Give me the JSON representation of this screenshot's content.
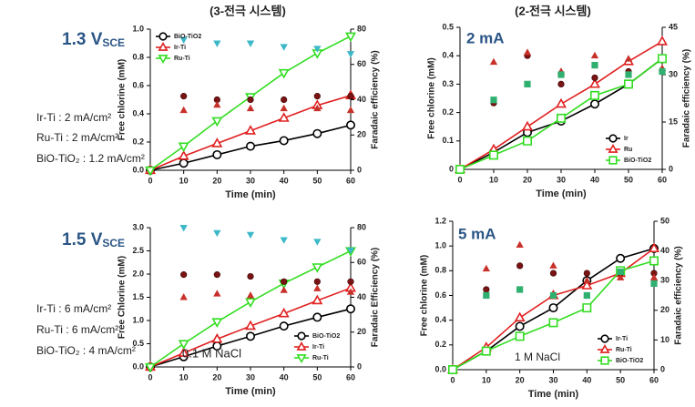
{
  "headings": [
    "(3-전극 시스템)",
    "(2-전극 시스템)"
  ],
  "conditions": [
    {
      "potential": "1.3 V",
      "subscript": "SCE",
      "lines": [
        "Ir-Ti : 2 mA/cm²",
        "Ru-Ti : 2 mA/cm²",
        "BiO-TiO₂ : 1.2 mA/cm²"
      ]
    },
    {
      "potential": "1.5 V",
      "subscript": "SCE",
      "lines": [
        "Ir-Ti : 6 mA/cm²",
        "Ru-Ti : 6 mA/cm²",
        "BiO-TiO₂ : 4 mA/cm²"
      ]
    }
  ],
  "chart_data": [
    {
      "type": "line",
      "xlabel": "Time (min)",
      "ylabel": "Free chlorine (mM)",
      "y2label": "Faradaic efficiency (%)",
      "x": [
        0,
        10,
        20,
        30,
        40,
        50,
        60
      ],
      "xlim": [
        0,
        60
      ],
      "xticks": [
        0,
        10,
        20,
        30,
        40,
        50,
        60
      ],
      "ylim": [
        0,
        1
      ],
      "yticks": [
        {
          "value": 0,
          "label": "0.0"
        },
        0.2,
        0.4,
        0.6,
        0.8,
        {
          "value": 1,
          "label": "1.0"
        }
      ],
      "y2lim": [
        0,
        80
      ],
      "y2ticks": [
        0,
        20,
        40,
        60,
        80
      ],
      "legend": "upper left",
      "annotations": [],
      "series": [
        {
          "name": "BiO-TiO2",
          "color": "#000000",
          "marker": "circle",
          "values": [
            0,
            0.05,
            0.11,
            0.17,
            0.21,
            0.26,
            0.32
          ]
        },
        {
          "name": "Ir-Ti",
          "color": "#e02020",
          "marker": "triangle-up",
          "values": [
            0,
            0.1,
            0.19,
            0.28,
            0.37,
            0.46,
            0.53
          ]
        },
        {
          "name": "Ru-Ti",
          "color": "#33dd22",
          "marker": "triangle-down",
          "values": [
            0,
            0.17,
            0.35,
            0.52,
            0.69,
            0.83,
            0.95
          ]
        },
        {
          "axis": "y2",
          "color": "#7a1414",
          "marker": "circle",
          "filled": true,
          "values": [
            null,
            42,
            40,
            40,
            40,
            42,
            42
          ]
        },
        {
          "axis": "y2",
          "color": "#c8302a",
          "marker": "triangle-up",
          "filled": true,
          "values": [
            null,
            34,
            37,
            35,
            35,
            35,
            34
          ]
        },
        {
          "axis": "y2",
          "color": "#3cb8c8",
          "marker": "triangle-down",
          "filled": true,
          "values": [
            null,
            74,
            72,
            72,
            70,
            69,
            66
          ]
        }
      ]
    },
    {
      "type": "line",
      "xlabel": "Time (min)",
      "ylabel": "Free Chlorine (mM)",
      "y2label": "Faradaic Efficiency (%)",
      "x": [
        0,
        10,
        20,
        30,
        40,
        50,
        60
      ],
      "xlim": [
        0,
        60
      ],
      "xticks": [
        0,
        10,
        20,
        30,
        40,
        50,
        60
      ],
      "ylim": [
        0,
        3
      ],
      "yticks": [
        {
          "value": 0,
          "label": "0.0"
        },
        0.5,
        {
          "value": 1,
          "label": "1.0"
        },
        1.5,
        {
          "value": 2,
          "label": "2.0"
        },
        2.5,
        {
          "value": 3,
          "label": "3.0"
        }
      ],
      "y2lim": [
        0,
        80
      ],
      "y2ticks": [
        0,
        20,
        40,
        60,
        80
      ],
      "legend": "lower right",
      "annotations": [
        "0.1 M NaCl"
      ],
      "series": [
        {
          "name": "BiO-TiO2",
          "color": "#000000",
          "marker": "circle",
          "values": [
            0,
            0.22,
            0.45,
            0.66,
            0.88,
            1.07,
            1.25
          ]
        },
        {
          "name": "Ir-Ti",
          "color": "#e02020",
          "marker": "triangle-up",
          "values": [
            0,
            0.3,
            0.6,
            0.88,
            1.15,
            1.43,
            1.7
          ]
        },
        {
          "name": "Ru-Ti",
          "color": "#33dd22",
          "marker": "triangle-down",
          "values": [
            0,
            0.5,
            0.97,
            1.4,
            1.8,
            2.15,
            2.5
          ]
        },
        {
          "axis": "y2",
          "color": "#7a1414",
          "marker": "circle",
          "filled": true,
          "values": [
            null,
            53,
            53,
            52,
            49,
            49,
            49
          ]
        },
        {
          "axis": "y2",
          "color": "#c8302a",
          "marker": "triangle-up",
          "filled": true,
          "values": [
            null,
            40,
            42,
            41,
            44,
            45,
            43
          ]
        },
        {
          "axis": "y2",
          "color": "#3cb8c8",
          "marker": "triangle-down",
          "filled": true,
          "values": [
            null,
            80,
            77,
            76,
            73,
            72,
            67
          ]
        }
      ]
    },
    {
      "type": "line",
      "xlabel": "Time (min)",
      "ylabel": "Free chlorine (mM)",
      "y2label": "Faradaic efficiency (%)",
      "x": [
        0,
        10,
        20,
        30,
        40,
        50,
        60
      ],
      "xlim": [
        0,
        60
      ],
      "xticks": [
        0,
        10,
        20,
        30,
        40,
        50,
        60
      ],
      "ylim": [
        0,
        0.5
      ],
      "yticks": [
        0,
        0.1,
        0.2,
        0.3,
        0.4,
        0.5
      ],
      "y2lim": [
        0,
        45
      ],
      "y2ticks": [
        0,
        15,
        30,
        45
      ],
      "legend": "lower right",
      "annotations": [
        "2 mA"
      ],
      "series": [
        {
          "name": "Ir",
          "color": "#000000",
          "marker": "circle",
          "values": [
            0,
            0.06,
            0.13,
            0.17,
            0.23,
            0.3,
            0.39
          ]
        },
        {
          "name": "Ru",
          "color": "#e02020",
          "marker": "triangle-up",
          "values": [
            0,
            0.07,
            0.15,
            0.23,
            0.3,
            0.38,
            0.45
          ]
        },
        {
          "name": "BiO-TiO2",
          "color": "#33dd22",
          "marker": "square",
          "values": [
            0,
            0.05,
            0.1,
            0.18,
            0.26,
            0.3,
            0.39
          ]
        },
        {
          "axis": "y2",
          "color": "#7a1414",
          "marker": "circle",
          "filled": true,
          "values": [
            null,
            21,
            36,
            27,
            29,
            31,
            31
          ]
        },
        {
          "axis": "y2",
          "color": "#c8302a",
          "marker": "triangle-up",
          "filled": true,
          "values": [
            null,
            34,
            37,
            31,
            36,
            35,
            32
          ]
        },
        {
          "axis": "y2",
          "color": "#30b070",
          "marker": "square",
          "filled": true,
          "values": [
            null,
            22,
            27,
            30,
            33,
            30,
            31
          ]
        }
      ]
    },
    {
      "type": "line",
      "xlabel": "Time (min)",
      "ylabel": "Free chlorine (mM)",
      "y2label": "Faradaic efficiency (%)",
      "x": [
        0,
        10,
        20,
        30,
        40,
        50,
        60
      ],
      "xlim": [
        0,
        60
      ],
      "xticks": [
        0,
        10,
        20,
        30,
        40,
        50,
        60
      ],
      "ylim": [
        0,
        1.2
      ],
      "yticks": [
        {
          "value": 0,
          "label": "0.0"
        },
        0.2,
        0.4,
        0.6,
        0.8,
        {
          "value": 1,
          "label": "1.0"
        },
        1.2
      ],
      "y2lim": [
        0,
        50
      ],
      "y2ticks": [
        0,
        10,
        20,
        30,
        40,
        50
      ],
      "legend": "lower right",
      "annotations": [
        "5 mA",
        "1 M NaCl"
      ],
      "series": [
        {
          "name": "Ir-Ti",
          "color": "#000000",
          "marker": "circle",
          "values": [
            0,
            0.15,
            0.35,
            0.5,
            0.72,
            0.9,
            0.98
          ]
        },
        {
          "name": "Ru-Ti",
          "color": "#e02020",
          "marker": "triangle-up",
          "values": [
            0,
            0.18,
            0.42,
            0.6,
            0.68,
            0.78,
            0.98
          ]
        },
        {
          "name": "BiO-TiO2",
          "color": "#33dd22",
          "marker": "square",
          "values": [
            0,
            0.15,
            0.27,
            0.38,
            0.5,
            0.8,
            0.88
          ]
        },
        {
          "axis": "y2",
          "color": "#7a1414",
          "marker": "circle",
          "filled": true,
          "values": [
            null,
            27,
            35,
            32.5,
            32.5,
            32.5,
            32.5
          ]
        },
        {
          "axis": "y2",
          "color": "#c8302a",
          "marker": "triangle-up",
          "filled": true,
          "values": [
            null,
            34,
            42,
            35,
            30,
            31,
            31
          ]
        },
        {
          "axis": "y2",
          "color": "#30b070",
          "marker": "square",
          "filled": true,
          "values": [
            null,
            25,
            27,
            25,
            25,
            33,
            29
          ]
        }
      ]
    }
  ]
}
